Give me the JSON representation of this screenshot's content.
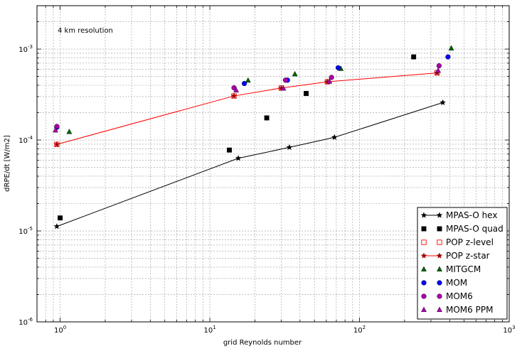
{
  "chart_data": {
    "type": "scatter",
    "annotation": "4 km resolution",
    "xlabel": "grid Reynolds number",
    "ylabel": "dRPE/dt [W/m2]",
    "x_scale": "log",
    "y_scale": "log",
    "xlim": [
      0.7,
      1000
    ],
    "ylim": [
      1e-06,
      0.003
    ],
    "grid": true,
    "legend_position": "lower-right",
    "x_ticks": [
      {
        "value": 1,
        "base": "10",
        "exp": "0"
      },
      {
        "value": 10,
        "base": "10",
        "exp": "1"
      },
      {
        "value": 100,
        "base": "10",
        "exp": "2"
      },
      {
        "value": 1000,
        "base": "10",
        "exp": "3"
      }
    ],
    "y_ticks": [
      {
        "value": 1e-06,
        "base": "10",
        "exp": "-6"
      },
      {
        "value": 1e-05,
        "base": "10",
        "exp": "-5"
      },
      {
        "value": 0.0001,
        "base": "10",
        "exp": "-4"
      },
      {
        "value": 0.001,
        "base": "10",
        "exp": "-3"
      }
    ],
    "series": [
      {
        "name": "MPAS-O hex",
        "marker": "star",
        "color": "#000000",
        "line": true,
        "x": [
          0.95,
          15.5,
          34,
          68,
          360
        ],
        "y": [
          1.12e-05,
          6.3e-05,
          8.3e-05,
          0.000107,
          0.000258
        ]
      },
      {
        "name": "MPAS-O quad",
        "marker": "square",
        "color": "#000000",
        "line": false,
        "x": [
          1.0,
          13.5,
          24,
          44,
          230
        ],
        "y": [
          1.39e-05,
          7.75e-05,
          0.000175,
          0.000325,
          0.00082
        ]
      },
      {
        "name": "POP z-level",
        "marker": "square-open",
        "color": "#ff0000",
        "line": false,
        "x": [
          0.95,
          14.5,
          30,
          61,
          330
        ],
        "y": [
          8.95e-05,
          0.000305,
          0.000373,
          0.000437,
          0.000547
        ]
      },
      {
        "name": "POP z-star",
        "marker": "star",
        "color": "#990000",
        "line": true,
        "line_color": "#ff0000",
        "x": [
          0.95,
          14.5,
          30,
          61,
          330
        ],
        "y": [
          8.95e-05,
          0.000305,
          0.000373,
          0.000437,
          0.000547
        ]
      },
      {
        "name": "MITGCM",
        "marker": "triangle",
        "color": "#006400",
        "line": false,
        "x": [
          1.15,
          18,
          37,
          75,
          410
        ],
        "y": [
          0.000123,
          0.000452,
          0.00053,
          0.000608,
          0.00102
        ]
      },
      {
        "name": "MOM",
        "marker": "circle",
        "color": "#0000ff",
        "line": false,
        "x": [
          0.95,
          17,
          33,
          72,
          390
        ],
        "y": [
          0.000138,
          0.000418,
          0.000455,
          0.000623,
          0.00082
        ]
      },
      {
        "name": "MOM6",
        "marker": "circle",
        "color": "#aa00aa",
        "line": false,
        "x": [
          0.95,
          14.5,
          32,
          65,
          340
        ],
        "y": [
          0.000141,
          0.000375,
          0.000455,
          0.000488,
          0.000655
        ]
      },
      {
        "name": "MOM6 PPM",
        "marker": "triangle",
        "color": "#aa00aa",
        "line": false,
        "x": [
          0.93,
          15,
          31,
          63,
          335
        ],
        "y": [
          0.000128,
          0.000352,
          0.00037,
          0.00044,
          0.00058
        ]
      }
    ]
  }
}
